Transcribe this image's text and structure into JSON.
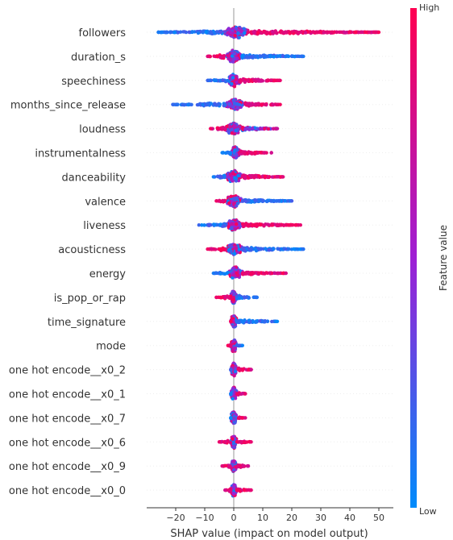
{
  "chart_data": {
    "type": "scatter",
    "subtype": "shap-beeswarm",
    "title": "",
    "xlabel": "SHAP value (impact on model output)",
    "ylabel": "",
    "xlim": [
      -30,
      55
    ],
    "xticks": [
      -20,
      -10,
      0,
      10,
      20,
      30,
      40,
      50
    ],
    "grid": false,
    "colorbar": {
      "title": "Feature value",
      "high_label": "High",
      "low_label": "Low",
      "low_color": "#008bfb",
      "mid_color": "#9e1fd4",
      "high_color": "#ff0051"
    },
    "features": [
      {
        "name": "followers",
        "min": -26,
        "max": 50,
        "core": [
          -4,
          6
        ],
        "tail_right_color": "high",
        "tail_left_color": "low"
      },
      {
        "name": "duration_s",
        "min": -9,
        "max": 24,
        "core": [
          -3,
          3
        ],
        "tail_right_color": "low",
        "tail_left_color": "high"
      },
      {
        "name": "speechiness",
        "min": -9,
        "max": 16,
        "core": [
          -2,
          2
        ],
        "tail_right_color": "high",
        "tail_left_color": "low"
      },
      {
        "name": "months_since_release",
        "min": -21,
        "max": 16,
        "core": [
          -3,
          4
        ],
        "tail_right_color": "high",
        "tail_left_color": "low"
      },
      {
        "name": "loudness",
        "min": -8,
        "max": 15,
        "core": [
          -3,
          3
        ],
        "tail_right_color": "mixed",
        "tail_left_color": "high"
      },
      {
        "name": "instrumentalness",
        "min": -4,
        "max": 13,
        "core": [
          -1,
          2
        ],
        "tail_right_color": "high",
        "tail_left_color": "low"
      },
      {
        "name": "danceability",
        "min": -7,
        "max": 17,
        "core": [
          -3,
          3
        ],
        "tail_right_color": "high",
        "tail_left_color": "low"
      },
      {
        "name": "valence",
        "min": -6,
        "max": 20,
        "core": [
          -3,
          3
        ],
        "tail_right_color": "low",
        "tail_left_color": "high"
      },
      {
        "name": "liveness",
        "min": -12,
        "max": 23,
        "core": [
          -3,
          3
        ],
        "tail_right_color": "high",
        "tail_left_color": "low"
      },
      {
        "name": "acousticness",
        "min": -9,
        "max": 24,
        "core": [
          -3,
          3
        ],
        "tail_right_color": "low",
        "tail_left_color": "high"
      },
      {
        "name": "energy",
        "min": -7,
        "max": 18,
        "core": [
          -2,
          3
        ],
        "tail_right_color": "high",
        "tail_left_color": "low"
      },
      {
        "name": "is_pop_or_rap",
        "min": -6,
        "max": 8,
        "core": [
          -1,
          1
        ],
        "tail_right_color": "low",
        "tail_left_color": "high"
      },
      {
        "name": "time_signature",
        "min": -1,
        "max": 15,
        "core": [
          -1,
          1
        ],
        "tail_right_color": "low",
        "tail_left_color": "high"
      },
      {
        "name": "mode",
        "min": -2,
        "max": 3,
        "core": [
          -1,
          1
        ],
        "tail_right_color": "low",
        "tail_left_color": "high"
      },
      {
        "name": "one hot encode__x0_2",
        "min": -1,
        "max": 6,
        "core": [
          -1,
          1
        ],
        "tail_right_color": "high",
        "tail_left_color": "low"
      },
      {
        "name": "one hot encode__x0_1",
        "min": -1,
        "max": 4,
        "core": [
          -1,
          1
        ],
        "tail_right_color": "high",
        "tail_left_color": "low"
      },
      {
        "name": "one hot encode__x0_7",
        "min": -1,
        "max": 4,
        "core": [
          -1,
          1
        ],
        "tail_right_color": "high",
        "tail_left_color": "low"
      },
      {
        "name": "one hot encode__x0_6",
        "min": -5,
        "max": 6,
        "core": [
          -1,
          1
        ],
        "tail_right_color": "high",
        "tail_left_color": "high"
      },
      {
        "name": "one hot encode__x0_9",
        "min": -4,
        "max": 5,
        "core": [
          -1,
          1
        ],
        "tail_right_color": "high",
        "tail_left_color": "high"
      },
      {
        "name": "one hot encode__x0_0",
        "min": -3,
        "max": 6,
        "core": [
          -1,
          1
        ],
        "tail_right_color": "high",
        "tail_left_color": "high"
      }
    ]
  }
}
